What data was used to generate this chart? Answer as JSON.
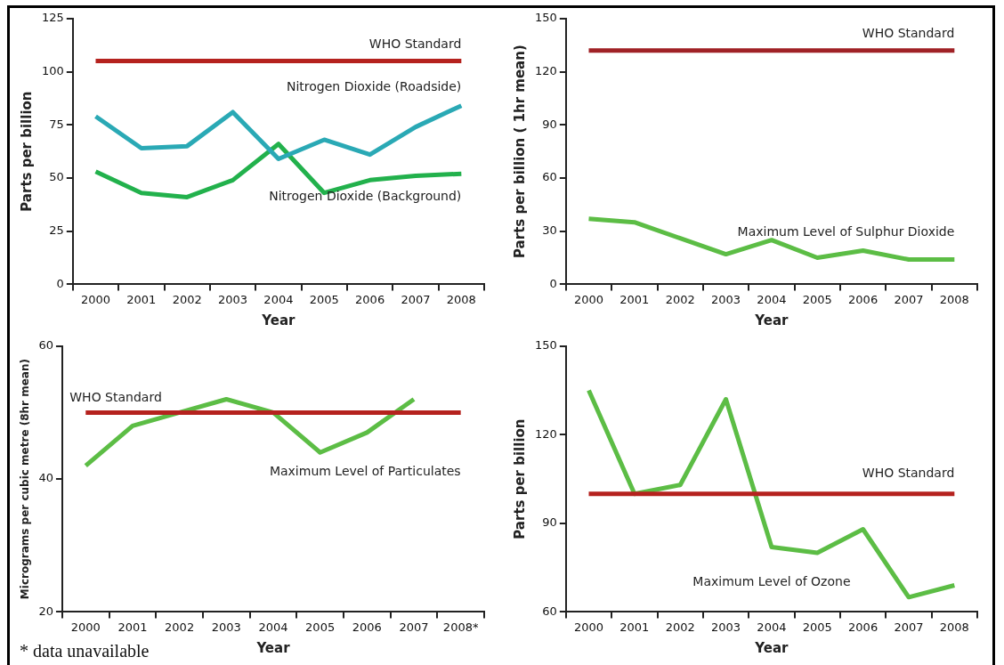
{
  "chart_data": [
    {
      "type": "line",
      "xlabel": "Year",
      "ylabel": "Parts per billion",
      "categories": [
        "2000",
        "2001",
        "2002",
        "2003",
        "2004",
        "2005",
        "2006",
        "2007",
        "2008"
      ],
      "ylim": [
        0,
        125
      ],
      "yticks": [
        0,
        25,
        50,
        75,
        100,
        125
      ],
      "grid": false,
      "legend": false,
      "marker": "none",
      "series": [
        {
          "name": "Nitrogen Dioxide (Roadside)",
          "color": "#2aa9b5",
          "values": [
            79,
            64,
            65,
            81,
            59,
            68,
            61,
            74,
            84
          ]
        },
        {
          "name": "Nitrogen Dioxide (Background)",
          "color": "#22b14c",
          "values": [
            53,
            43,
            41,
            49,
            66,
            43,
            49,
            51,
            52
          ]
        }
      ],
      "ref_lines": [
        {
          "axis": "y",
          "value": 105,
          "label": "WHO Standard",
          "color": "#b5221e"
        }
      ]
    },
    {
      "type": "line",
      "xlabel": "Year",
      "ylabel": "Parts per billion ( 1hr mean)",
      "categories": [
        "2000",
        "2001",
        "2002",
        "2003",
        "2004",
        "2005",
        "2006",
        "2007",
        "2008"
      ],
      "ylim": [
        0,
        150
      ],
      "yticks": [
        0,
        30,
        60,
        90,
        120,
        150
      ],
      "grid": false,
      "legend": false,
      "marker": "none",
      "series": [
        {
          "name": "Maximum Level of Sulphur Dioxide",
          "color": "#5cbd45",
          "values": [
            37,
            35,
            26,
            17,
            25,
            15,
            19,
            14,
            14
          ]
        }
      ],
      "ref_lines": [
        {
          "axis": "y",
          "value": 132,
          "label": "WHO Standard",
          "color": "#a02226"
        }
      ]
    },
    {
      "type": "line",
      "xlabel": "Year",
      "ylabel": "Micrograms per cubic metre (8hr mean)",
      "categories": [
        "2000",
        "2001",
        "2002",
        "2003",
        "2004",
        "2005",
        "2006",
        "2007",
        "2008*"
      ],
      "ylim": [
        20,
        60
      ],
      "yticks": [
        20,
        40,
        60
      ],
      "grid": false,
      "legend": false,
      "marker": "none",
      "series": [
        {
          "name": "Maximum Level of Particulates",
          "color": "#5cbd45",
          "values": [
            42,
            48,
            50,
            52,
            50,
            44,
            47,
            52,
            null
          ]
        }
      ],
      "ref_lines": [
        {
          "axis": "y",
          "value": 50,
          "label": "WHO Standard",
          "color": "#b5221e"
        }
      ],
      "annotations": [
        "* data unavailable"
      ]
    },
    {
      "type": "line",
      "xlabel": "Year",
      "ylabel": "Parts per billion",
      "categories": [
        "2000",
        "2001",
        "2002",
        "2003",
        "2004",
        "2005",
        "2006",
        "2007",
        "2008"
      ],
      "ylim": [
        60,
        150
      ],
      "yticks": [
        60,
        90,
        120,
        150
      ],
      "grid": false,
      "legend": false,
      "marker": "none",
      "series": [
        {
          "name": "Maximum Level of Ozone",
          "color": "#5cbd45",
          "values": [
            135,
            100,
            103,
            132,
            82,
            80,
            88,
            65,
            69
          ]
        }
      ],
      "ref_lines": [
        {
          "axis": "y",
          "value": 100,
          "label": "WHO Standard",
          "color": "#b5221e"
        }
      ]
    }
  ]
}
